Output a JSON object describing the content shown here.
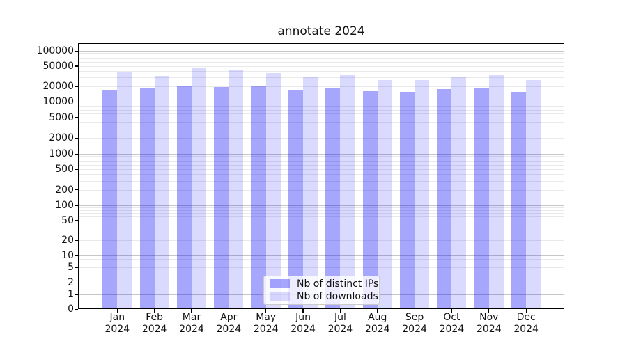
{
  "chart_data": {
    "type": "bar",
    "title": "annotate 2024",
    "categories": [
      "Jan",
      "Feb",
      "Mar",
      "Apr",
      "May",
      "Jun",
      "Jul",
      "Aug",
      "Sep",
      "Oct",
      "Nov",
      "Dec"
    ],
    "x_tick_year": "2024",
    "series": [
      {
        "name": "Nb of distinct IPs",
        "color": "rgba(0,0,250,0.35)",
        "values": [
          17300,
          18000,
          20500,
          19200,
          20000,
          17000,
          18900,
          15800,
          15500,
          17800,
          18600,
          15700
        ]
      },
      {
        "name": "Nb of downloads",
        "color": "rgba(0,0,250,0.145)",
        "values": [
          38500,
          32400,
          47000,
          41000,
          36000,
          30400,
          32800,
          26800,
          26700,
          31100,
          33400,
          26500
        ]
      }
    ],
    "y_ticks": [
      "100000",
      "50000",
      "20000",
      "10000",
      "5000",
      "2000",
      "1000",
      "500",
      "200",
      "100",
      "50",
      "20",
      "10",
      "5",
      "2",
      "1",
      "0"
    ],
    "yscale": "symlog",
    "ylim": [
      0,
      146000
    ],
    "grid": "on",
    "legend_position": "lower center",
    "colors": {
      "bar_dark_rendered": "#a7a7fb",
      "bar_light_rendered": "#dadafc"
    }
  }
}
